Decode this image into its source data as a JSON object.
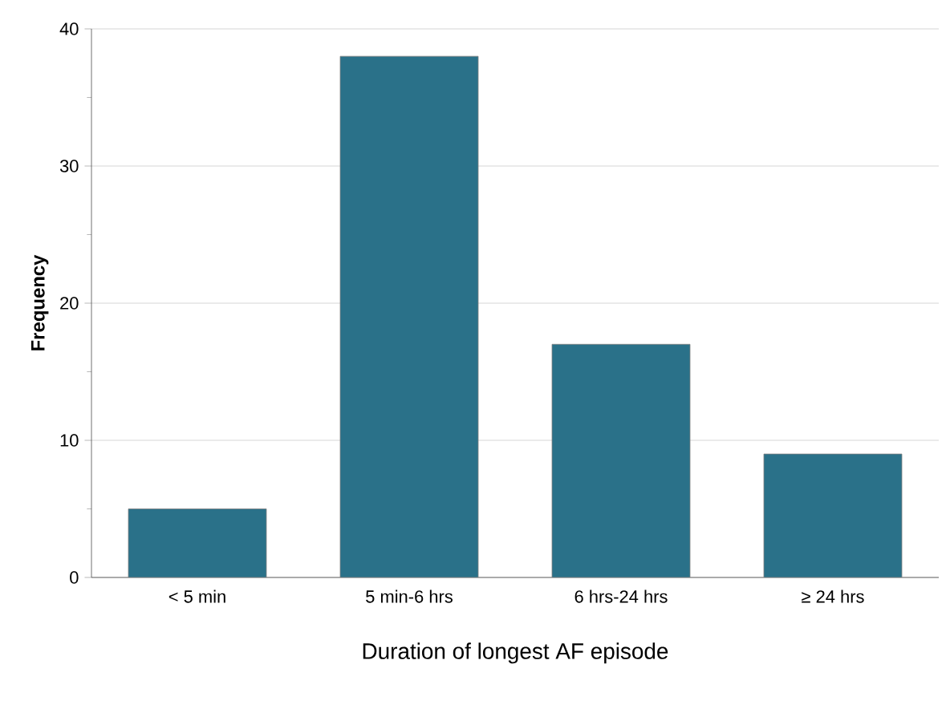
{
  "chart_data": {
    "type": "bar",
    "xlabel": "Duration of longest AF episode",
    "ylabel": "Frequency",
    "categories": [
      "< 5 min",
      "5 min-6 hrs",
      "6 hrs-24 hrs",
      "≥ 24 hrs"
    ],
    "values": [
      5,
      38,
      17,
      9
    ],
    "color": "#2a7189",
    "ylim": [
      0,
      40
    ],
    "yticks": [
      0,
      10,
      20,
      30,
      40
    ],
    "grid": "y"
  }
}
